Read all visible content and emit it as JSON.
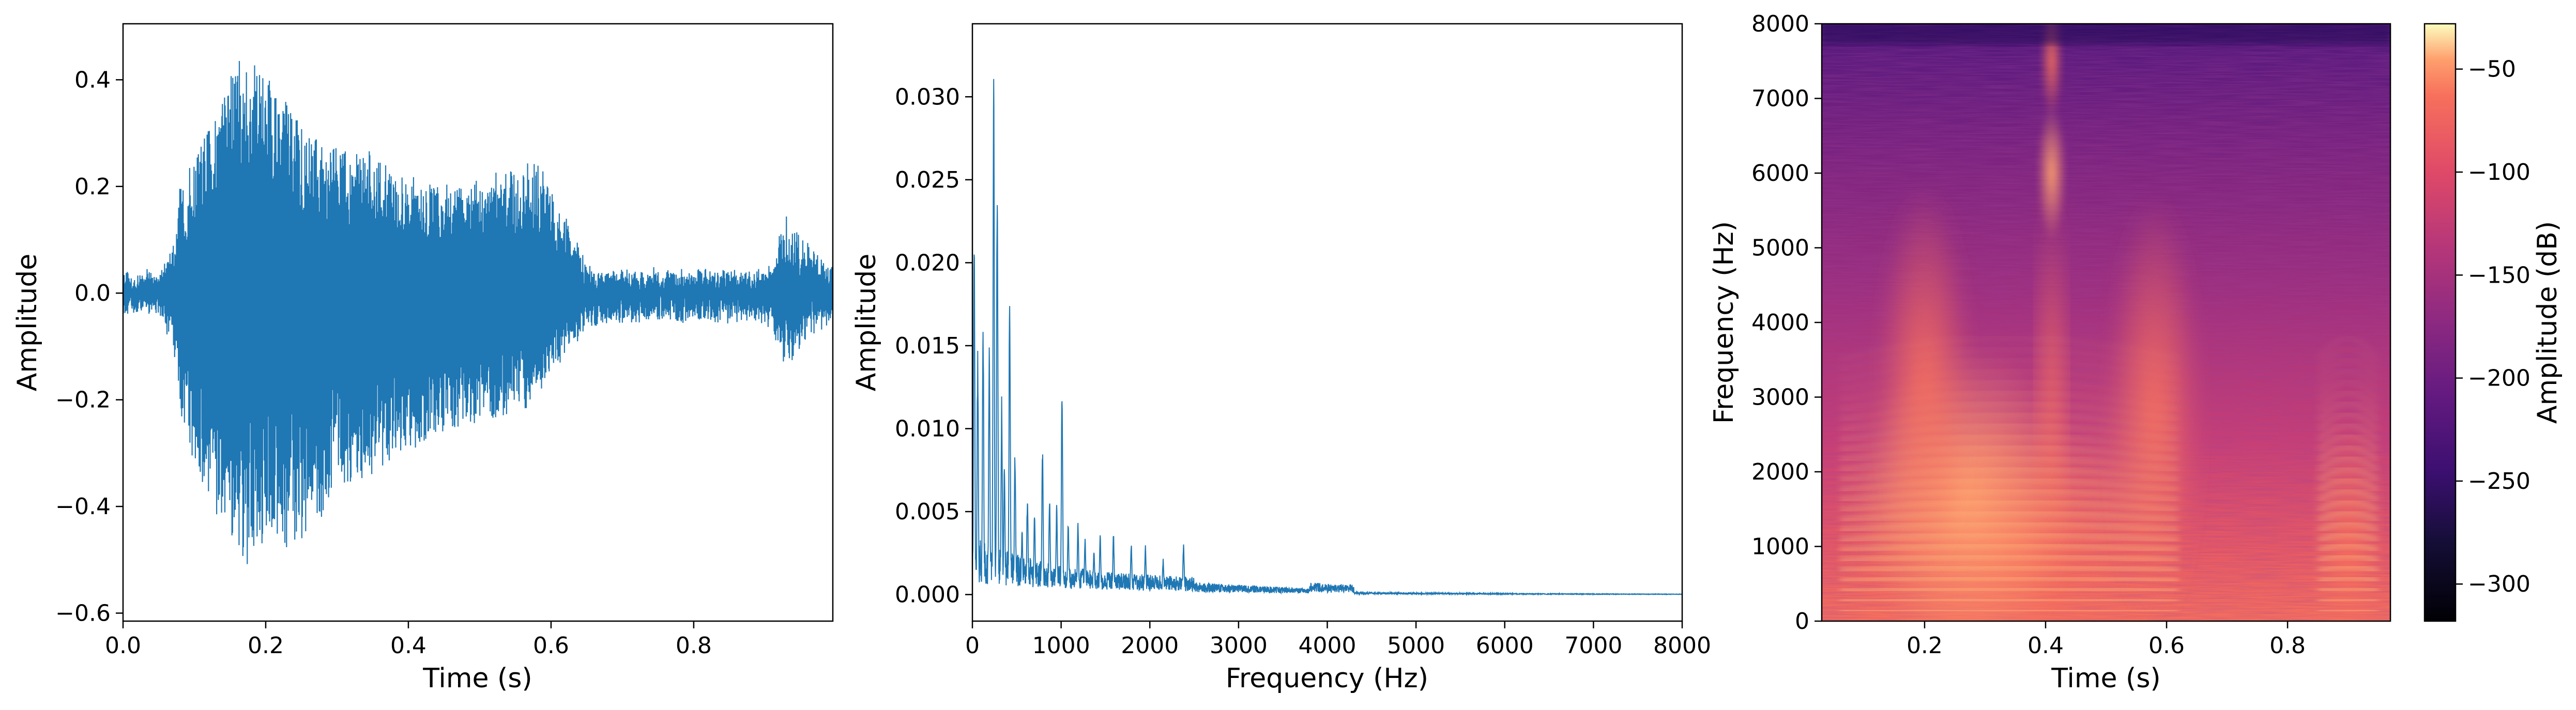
{
  "chart_data": [
    {
      "type": "line",
      "xlabel": "Time (s)",
      "ylabel": "Amplitude",
      "xlim": [
        0,
        0.995
      ],
      "ylim": [
        -0.615,
        0.505
      ],
      "xticks": [
        "0.0",
        "0.2",
        "0.4",
        "0.6",
        "0.8"
      ],
      "yticks": [
        "−0.6",
        "−0.4",
        "−0.2",
        "0.0",
        "0.2",
        "0.4"
      ],
      "series": [
        {
          "color": "#1f77b4",
          "envelope": {
            "t": [
              0,
              0.05,
              0.07,
              0.08,
              0.1,
              0.13,
              0.16,
              0.18,
              0.2,
              0.23,
              0.26,
              0.3,
              0.35,
              0.4,
              0.45,
              0.5,
              0.55,
              0.58,
              0.6,
              0.65,
              0.7,
              0.8,
              0.9,
              0.93,
              0.95,
              0.97,
              0.995
            ],
            "pos": [
              0.03,
              0.04,
              0.08,
              0.2,
              0.25,
              0.34,
              0.44,
              0.45,
              0.4,
              0.36,
              0.31,
              0.27,
              0.26,
              0.22,
              0.2,
              0.21,
              0.23,
              0.24,
              0.2,
              0.05,
              0.04,
              0.04,
              0.04,
              0.14,
              0.1,
              0.08,
              0.05
            ],
            "neg": [
              -0.03,
              -0.04,
              -0.1,
              -0.22,
              -0.32,
              -0.41,
              -0.55,
              -0.5,
              -0.47,
              -0.5,
              -0.45,
              -0.38,
              -0.35,
              -0.3,
              -0.26,
              -0.24,
              -0.22,
              -0.2,
              -0.15,
              -0.06,
              -0.05,
              -0.05,
              -0.05,
              -0.14,
              -0.1,
              -0.07,
              -0.05
            ]
          }
        }
      ]
    },
    {
      "type": "line",
      "xlabel": "Frequency (Hz)",
      "ylabel": "Amplitude",
      "xlim": [
        0,
        8000
      ],
      "ylim": [
        -0.0016,
        0.0344
      ],
      "xticks": [
        "0",
        "1000",
        "2000",
        "3000",
        "4000",
        "5000",
        "6000",
        "7000",
        "8000"
      ],
      "yticks": [
        "0.000",
        "0.005",
        "0.010",
        "0.015",
        "0.020",
        "0.025",
        "0.030"
      ],
      "series": [
        {
          "color": "#1f77b4",
          "peaks": {
            "f": [
              20,
              60,
              120,
              190,
              240,
              280,
              330,
              360,
              420,
              480,
              560,
              620,
              700,
              790,
              870,
              950,
              1010,
              1080,
              1190,
              1270,
              1370,
              1440,
              1590,
              1790,
              1950,
              2150,
              2380
            ],
            "a": [
              0.022,
              0.015,
              0.0172,
              0.0158,
              0.0328,
              0.027,
              0.012,
              0.008,
              0.0195,
              0.009,
              0.004,
              0.006,
              0.005,
              0.0092,
              0.006,
              0.0055,
              0.013,
              0.0045,
              0.0045,
              0.0035,
              0.0028,
              0.0038,
              0.0038,
              0.0032,
              0.003,
              0.0022,
              0.0031
            ]
          }
        }
      ]
    },
    {
      "type": "heatmap",
      "xlabel": "Time (s)",
      "ylabel": "Frequency (Hz)",
      "xlim": [
        0.03,
        0.97
      ],
      "ylim": [
        0,
        8000
      ],
      "xticks": [
        "0.2",
        "0.4",
        "0.6",
        "0.8"
      ],
      "yticks": [
        "0",
        "1000",
        "2000",
        "3000",
        "4000",
        "5000",
        "6000",
        "7000",
        "8000"
      ],
      "colormap": "magma",
      "colorbar": {
        "label": "Amplitude (dB)",
        "range": [
          -318,
          -28
        ],
        "ticks": [
          "−300",
          "−250",
          "−200",
          "−150",
          "−100",
          "−50"
        ]
      },
      "harmonics": {
        "f0_hz": 135,
        "voiced_time_ranges": [
          [
            0.06,
            0.62
          ],
          [
            0.85,
            0.95
          ]
        ],
        "energy_peaks": [
          {
            "t": 0.41,
            "f": 6000,
            "label_free": true
          },
          {
            "t": 0.41,
            "f": 7600,
            "label_free": true
          }
        ]
      }
    }
  ]
}
